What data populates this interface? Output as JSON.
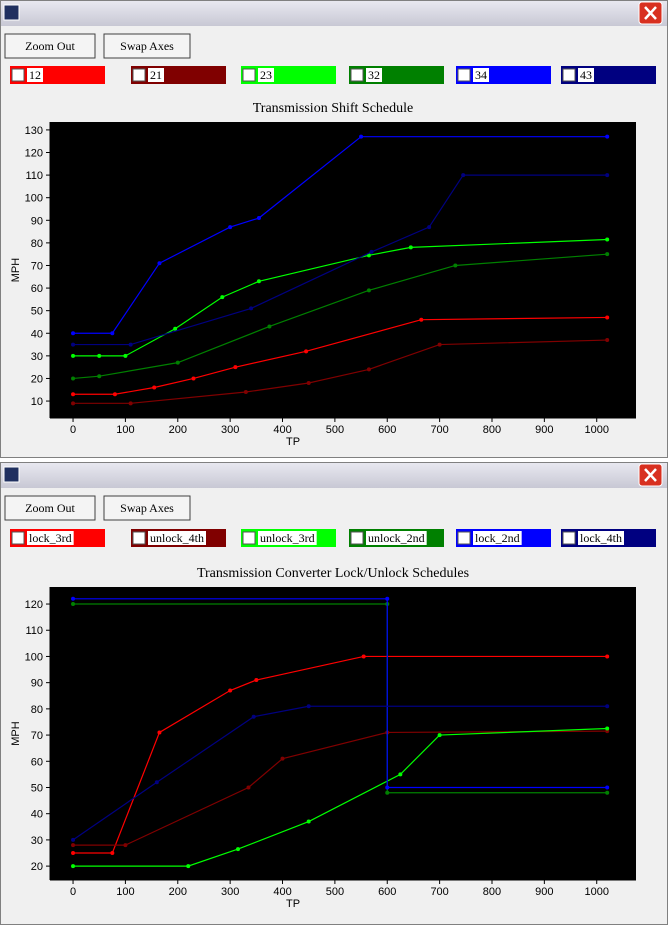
{
  "windows": [
    {
      "buttons": [
        "Zoom Out",
        "Swap Axes"
      ]
    },
    {
      "buttons": [
        "Zoom Out",
        "Swap Axes"
      ]
    }
  ],
  "chart_data": [
    {
      "type": "line",
      "title": "Transmission Shift Schedule",
      "x_label": "TP",
      "y_label": "MPH",
      "xlim": [
        -44,
        1075
      ],
      "ylim": [
        2.5,
        133.5
      ],
      "xticks": [
        0,
        100,
        200,
        300,
        400,
        500,
        600,
        700,
        800,
        900,
        1000
      ],
      "yticks": [
        10,
        20,
        30,
        40,
        50,
        60,
        70,
        80,
        90,
        100,
        110,
        120,
        130
      ],
      "series": [
        {
          "name": "12",
          "color": "#ff0000",
          "x": [
            0,
            80,
            155,
            230,
            310,
            445,
            665,
            1020
          ],
          "values": [
            13,
            13,
            16,
            20,
            25,
            32,
            46,
            47
          ]
        },
        {
          "name": "21",
          "color": "#800000",
          "x": [
            0,
            110,
            330,
            450,
            565,
            700,
            1020
          ],
          "values": [
            9,
            9,
            14,
            18,
            24,
            35,
            37
          ]
        },
        {
          "name": "23",
          "color": "#00ff00",
          "x": [
            0,
            50,
            100,
            195,
            285,
            355,
            565,
            645,
            1020
          ],
          "values": [
            30,
            30,
            30,
            42,
            56,
            63,
            74.5,
            78,
            81.5
          ]
        },
        {
          "name": "32",
          "color": "#008000",
          "x": [
            0,
            50,
            200,
            375,
            565,
            730,
            1020
          ],
          "values": [
            20,
            21,
            27,
            43,
            59,
            70,
            75
          ]
        },
        {
          "name": "34",
          "color": "#0000ff",
          "x": [
            0,
            75,
            165,
            300,
            355,
            550,
            1020
          ],
          "values": [
            40,
            40,
            71,
            87,
            91,
            127,
            127
          ]
        },
        {
          "name": "43",
          "color": "#000080",
          "x": [
            0,
            110,
            340,
            570,
            680,
            745,
            1020
          ],
          "values": [
            35,
            35,
            51,
            76,
            87,
            110,
            110
          ]
        }
      ]
    },
    {
      "type": "line",
      "title": "Transmission Converter Lock/Unlock Schedules",
      "x_label": "TP",
      "y_label": "MPH",
      "xlim": [
        -44,
        1075
      ],
      "ylim": [
        14.7,
        126.5
      ],
      "xticks": [
        0,
        100,
        200,
        300,
        400,
        500,
        600,
        700,
        800,
        900,
        1000
      ],
      "yticks": [
        20,
        30,
        40,
        50,
        60,
        70,
        80,
        90,
        100,
        110,
        120
      ],
      "series": [
        {
          "name": "lock_3rd",
          "color": "#ff0000",
          "x": [
            0,
            75,
            165,
            300,
            350,
            555,
            1020
          ],
          "values": [
            25,
            25,
            71,
            87,
            91,
            100,
            100
          ]
        },
        {
          "name": "unlock_4th",
          "color": "#800000",
          "x": [
            0,
            100,
            335,
            400,
            600,
            1020
          ],
          "values": [
            28,
            28,
            50,
            61,
            71,
            71.5
          ]
        },
        {
          "name": "unlock_3rd",
          "color": "#00ff00",
          "x": [
            0,
            220,
            315,
            450,
            625,
            700,
            1020
          ],
          "values": [
            20,
            20,
            26.5,
            37,
            55,
            70,
            72.5
          ]
        },
        {
          "name": "unlock_2nd",
          "color": "#008000",
          "x": [
            0,
            600,
            600,
            1020
          ],
          "values": [
            120,
            120,
            48,
            48
          ]
        },
        {
          "name": "lock_2nd",
          "color": "#0000ff",
          "x": [
            0,
            600,
            600,
            1020
          ],
          "values": [
            122,
            122,
            50,
            50
          ]
        },
        {
          "name": "lock_4th",
          "color": "#000080",
          "x": [
            0,
            160,
            345,
            450,
            1020
          ],
          "values": [
            30,
            52,
            77,
            81,
            81
          ]
        }
      ]
    }
  ]
}
